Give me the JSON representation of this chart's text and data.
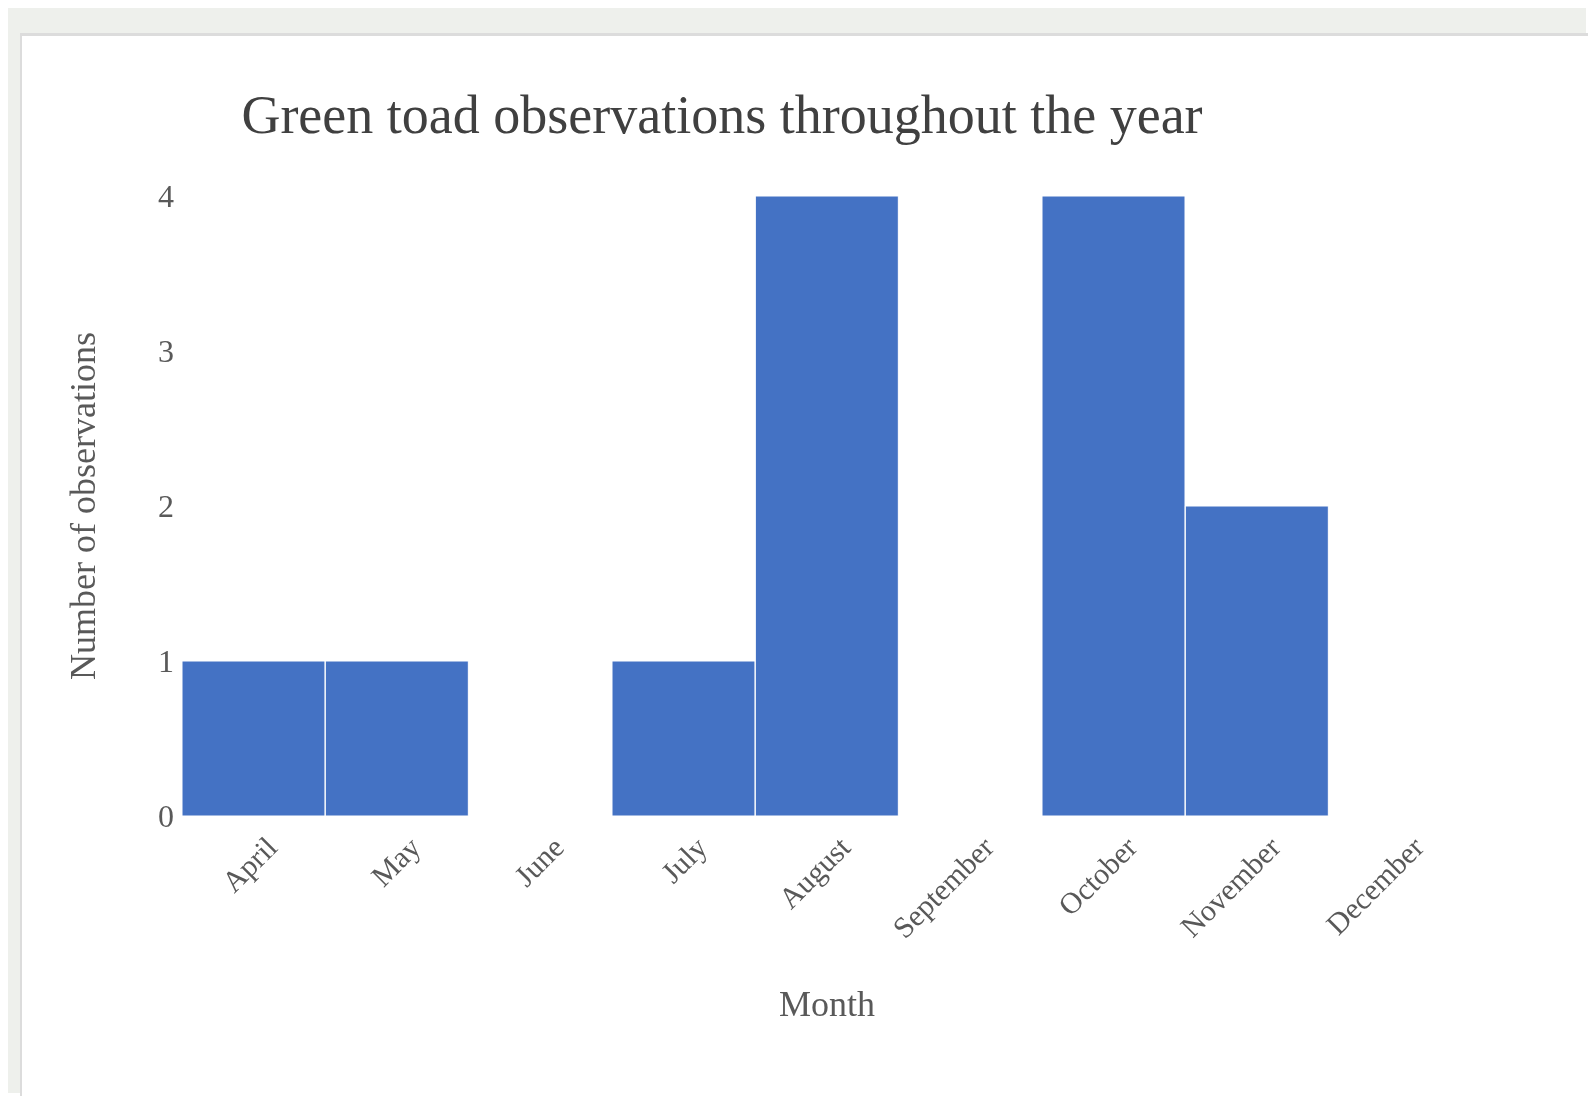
{
  "chart_data": {
    "type": "bar",
    "title": "Green toad observations throughout the year",
    "xlabel": "Month",
    "ylabel": "Number of observations",
    "categories": [
      "April",
      "May",
      "June",
      "July",
      "August",
      "September",
      "October",
      "November",
      "December"
    ],
    "values": [
      1,
      1,
      0,
      1,
      4,
      0,
      4,
      2,
      0
    ],
    "color": "#4472c4",
    "ylim": [
      0,
      4
    ],
    "yticks": [
      0,
      1,
      2,
      3,
      4
    ],
    "legend": false
  }
}
